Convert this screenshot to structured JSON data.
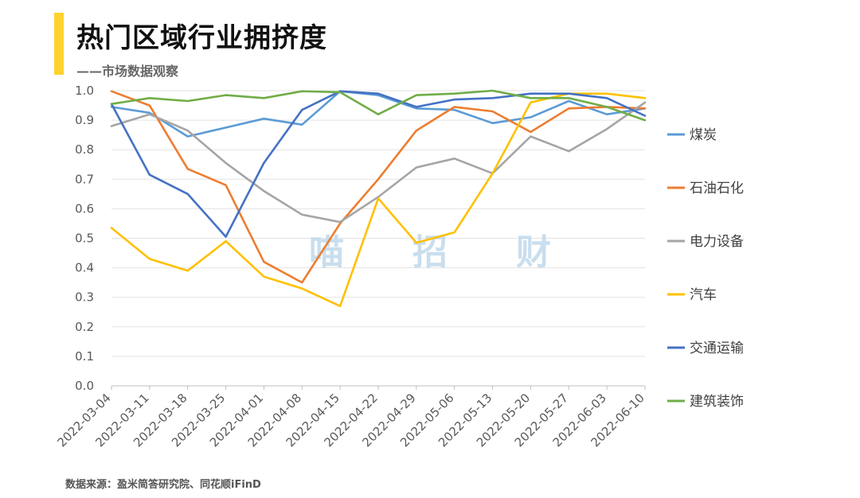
{
  "header": {
    "title": "热门区域行业拥挤度",
    "subtitle": "——市场数据观察",
    "accent_color": "#FFD22E"
  },
  "footer": {
    "source": "数据来源：盈米简答研究院、同花顺iFinD"
  },
  "watermark": [
    "喵",
    "招",
    "财"
  ],
  "chart_data": {
    "type": "line",
    "title": "热门区域行业拥挤度",
    "xlabel": "",
    "ylabel": "",
    "ylim": [
      0,
      1
    ],
    "yticks": [
      "0.0",
      "0.1",
      "0.2",
      "0.3",
      "0.4",
      "0.5",
      "0.6",
      "0.7",
      "0.8",
      "0.9",
      "1.0"
    ],
    "grid": true,
    "legend_position": "right",
    "x": [
      "2022-03-04",
      "2022-03-11",
      "2022-03-18",
      "2022-03-25",
      "2022-04-01",
      "2022-04-08",
      "2022-04-15",
      "2022-04-22",
      "2022-04-29",
      "2022-05-06",
      "2022-05-13",
      "2022-05-20",
      "2022-05-27",
      "2022-06-03",
      "2022-06-10"
    ],
    "series": [
      {
        "name": "煤炭",
        "color": "#5B9BD5",
        "values": [
          0.945,
          0.925,
          0.845,
          0.875,
          0.905,
          0.885,
          0.998,
          0.985,
          0.94,
          0.935,
          0.89,
          0.91,
          0.965,
          0.92,
          0.94
        ]
      },
      {
        "name": "石油石化",
        "color": "#ED7D31",
        "values": [
          0.998,
          0.95,
          0.735,
          0.68,
          0.42,
          0.35,
          0.55,
          0.7,
          0.865,
          0.945,
          0.93,
          0.86,
          0.94,
          0.945,
          0.94
        ]
      },
      {
        "name": "电力设备",
        "color": "#A5A5A5",
        "values": [
          0.88,
          0.92,
          0.865,
          0.755,
          0.66,
          0.58,
          0.555,
          0.64,
          0.74,
          0.77,
          0.72,
          0.845,
          0.795,
          0.87,
          0.96
        ]
      },
      {
        "name": "汽车",
        "color": "#FFC000",
        "values": [
          0.535,
          0.43,
          0.39,
          0.49,
          0.37,
          0.33,
          0.27,
          0.635,
          0.485,
          0.52,
          0.72,
          0.96,
          0.99,
          0.99,
          0.975
        ]
      },
      {
        "name": "交通运输",
        "color": "#4472C4",
        "values": [
          0.955,
          0.715,
          0.65,
          0.505,
          0.755,
          0.935,
          0.998,
          0.99,
          0.945,
          0.97,
          0.975,
          0.99,
          0.99,
          0.975,
          0.915
        ]
      },
      {
        "name": "建筑装饰",
        "color": "#70AD47",
        "values": [
          0.955,
          0.975,
          0.965,
          0.985,
          0.975,
          0.998,
          0.995,
          0.92,
          0.985,
          0.99,
          1.0,
          0.975,
          0.975,
          0.945,
          0.9
        ]
      }
    ]
  }
}
